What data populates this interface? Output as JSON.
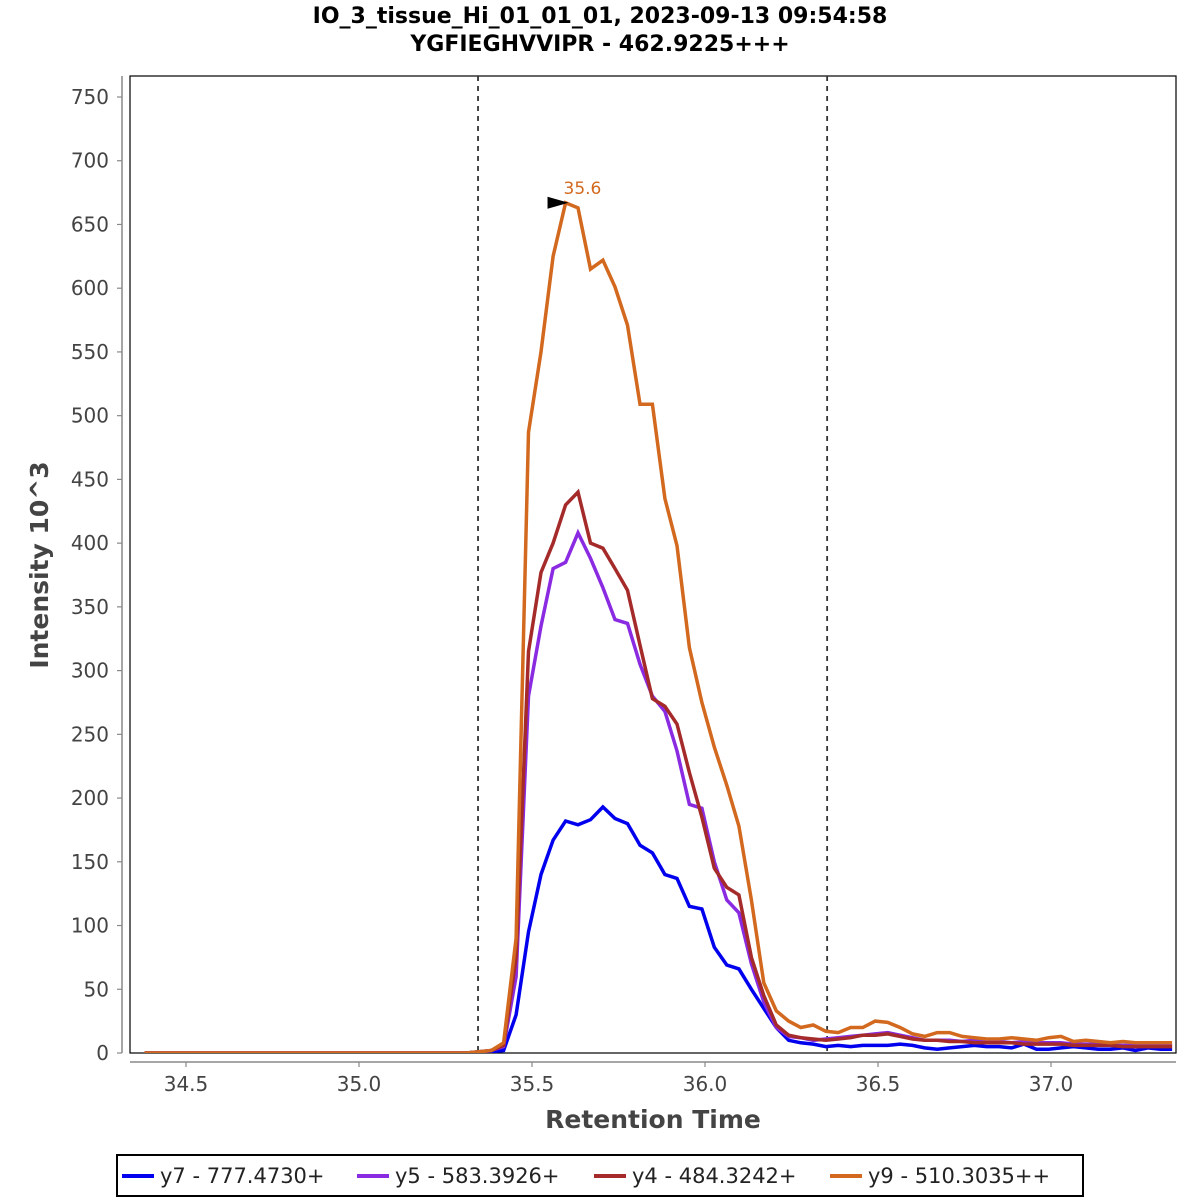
{
  "chart_data": {
    "type": "line",
    "title": "IO_3_tissue_Hi_01_01_01, 2023-09-13 09:54:58",
    "subtitle": "YGFIEGHVVIPR - 462.9225+++",
    "xlabel": "Retention Time",
    "ylabel": "Intensity 10^3",
    "xlim": [
      34.35,
      37.35
    ],
    "ylim": [
      0,
      765
    ],
    "xticks": [
      "34.5",
      "35.0",
      "35.5",
      "36.0",
      "36.5",
      "37.0"
    ],
    "xtick_values": [
      34.5,
      35.0,
      35.5,
      36.0,
      36.5,
      37.0
    ],
    "yticks": [
      "0",
      "50",
      "100",
      "150",
      "200",
      "250",
      "300",
      "350",
      "400",
      "450",
      "500",
      "550",
      "600",
      "650",
      "700",
      "750"
    ],
    "ytick_values": [
      0,
      50,
      100,
      150,
      200,
      250,
      300,
      350,
      400,
      450,
      500,
      550,
      600,
      650,
      700,
      750
    ],
    "grid": false,
    "legend_position": "bottom",
    "integration_bounds": [
      35.344,
      36.353
    ],
    "peak_annotation": {
      "label": "35.6",
      "x": 35.62,
      "y": 667,
      "color": "#d2691e"
    },
    "x": [
      34.38,
      34.416,
      34.452,
      34.487,
      34.523,
      34.559,
      34.595,
      34.631,
      34.666,
      34.702,
      34.738,
      34.774,
      34.81,
      34.845,
      34.881,
      34.917,
      34.953,
      34.989,
      35.024,
      35.06,
      35.096,
      35.132,
      35.168,
      35.203,
      35.239,
      35.275,
      35.311,
      35.347,
      35.382,
      35.418,
      35.454,
      35.49,
      35.526,
      35.561,
      35.597,
      35.633,
      35.669,
      35.705,
      35.74,
      35.776,
      35.812,
      35.848,
      35.884,
      35.919,
      35.955,
      35.991,
      36.027,
      36.063,
      36.098,
      36.134,
      36.17,
      36.206,
      36.242,
      36.277,
      36.313,
      36.349,
      36.385,
      36.421,
      36.456,
      36.492,
      36.528,
      36.564,
      36.6,
      36.635,
      36.671,
      36.707,
      36.743,
      36.779,
      36.814,
      36.85,
      36.886,
      36.922,
      36.958,
      36.993,
      37.029,
      37.065,
      37.101,
      37.137,
      37.172,
      37.208,
      37.244,
      37.28,
      37.316,
      37.35
    ],
    "series": [
      {
        "name": "y7 - 777.4730+",
        "color": "#0000ee",
        "values": [
          0,
          0,
          0,
          0,
          0,
          0,
          0,
          0,
          0,
          0,
          0,
          0,
          0,
          0,
          0,
          0,
          0,
          0,
          0,
          0,
          0,
          0,
          0,
          0,
          0,
          0,
          0,
          1,
          1,
          2,
          30,
          95,
          140,
          167,
          182,
          179,
          183,
          193,
          184,
          180,
          163,
          157,
          140,
          137,
          115,
          113,
          83,
          69,
          66,
          50,
          35,
          20,
          10,
          8,
          7,
          5,
          6,
          5,
          6,
          6,
          6,
          7,
          6,
          4,
          3,
          4,
          5,
          6,
          5,
          5,
          4,
          7,
          3,
          3,
          4,
          5,
          4,
          3,
          3,
          4,
          2,
          4,
          3,
          3
        ]
      },
      {
        "name": "y5 - 583.3926+",
        "color": "#8a2be2",
        "values": [
          0,
          0,
          0,
          0,
          0,
          0,
          0,
          0,
          0,
          0,
          0,
          0,
          0,
          0,
          0,
          0,
          0,
          0,
          0,
          0,
          0,
          0,
          0,
          0,
          0,
          0,
          0,
          1,
          2,
          5,
          60,
          280,
          335,
          380,
          385,
          408,
          388,
          365,
          340,
          337,
          305,
          280,
          268,
          237,
          195,
          192,
          150,
          120,
          110,
          70,
          40,
          20,
          13,
          12,
          10,
          11,
          12,
          13,
          14,
          15,
          16,
          14,
          12,
          10,
          10,
          10,
          9,
          10,
          9,
          9,
          8,
          9,
          8,
          8,
          8,
          7,
          7,
          7,
          6,
          6,
          6,
          6,
          6,
          6
        ]
      },
      {
        "name": "y4 - 484.3242+",
        "color": "#a52a2a",
        "values": [
          0,
          0,
          0,
          0,
          0,
          0,
          0,
          0,
          0,
          0,
          0,
          0,
          0,
          0,
          0,
          0,
          0,
          0,
          0,
          0,
          0,
          0,
          0,
          0,
          0,
          0,
          0,
          1,
          2,
          6,
          75,
          315,
          377,
          400,
          430,
          440,
          400,
          396,
          380,
          363,
          320,
          278,
          272,
          258,
          220,
          185,
          145,
          130,
          124,
          75,
          45,
          22,
          14,
          12,
          11,
          10,
          11,
          12,
          14,
          14,
          15,
          13,
          11,
          10,
          10,
          9,
          9,
          8,
          8,
          8,
          8,
          7,
          7,
          7,
          7,
          6,
          6,
          6,
          6,
          5,
          5,
          5,
          5,
          5
        ]
      },
      {
        "name": "y9 - 510.3035++",
        "color": "#d2691e",
        "values": [
          0,
          0,
          0,
          0,
          0,
          0,
          0,
          0,
          0,
          0,
          0,
          0,
          0,
          0,
          0,
          0,
          0,
          0,
          0,
          0,
          0,
          0,
          0,
          0,
          0,
          0,
          0,
          1,
          2,
          8,
          90,
          487,
          550,
          625,
          667,
          663,
          615,
          622,
          601,
          571,
          509,
          509,
          435,
          398,
          318,
          275,
          240,
          210,
          178,
          120,
          55,
          33,
          25,
          20,
          22,
          17,
          16,
          20,
          20,
          25,
          24,
          20,
          15,
          13,
          16,
          16,
          13,
          12,
          11,
          11,
          12,
          11,
          10,
          12,
          13,
          9,
          10,
          9,
          8,
          9,
          8,
          8,
          8,
          8
        ]
      }
    ]
  }
}
